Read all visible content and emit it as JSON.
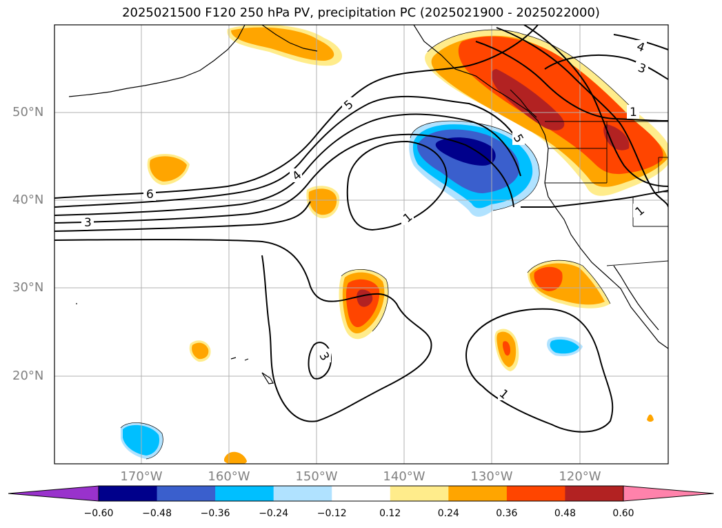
{
  "title": "2025021500 F120 250 hPa PV, precipitation PC (2025021900 - 2025022000)",
  "lon_ticks": [
    "170°W",
    "160°W",
    "150°W",
    "140°W",
    "130°W",
    "120°W"
  ],
  "lat_ticks": [
    "50°N",
    "40°N",
    "30°N",
    "20°N"
  ],
  "contour_labels": [
    "5",
    "4",
    "6",
    "3",
    "1",
    "5",
    "4",
    "3",
    "1",
    "1",
    "3",
    "1"
  ],
  "colorbar": {
    "ticks": [
      "−0.60",
      "−0.48",
      "−0.36",
      "−0.24",
      "−0.12",
      "0.12",
      "0.24",
      "0.36",
      "0.48",
      "0.60"
    ],
    "colors": [
      "#9932CC",
      "#00008B",
      "#3A5FCD",
      "#00BFFF",
      "#B0E2FF",
      "#FFFFFF",
      "#FFEC8B",
      "#FFA500",
      "#FF4500",
      "#B22222",
      "#FF82AB"
    ]
  }
}
